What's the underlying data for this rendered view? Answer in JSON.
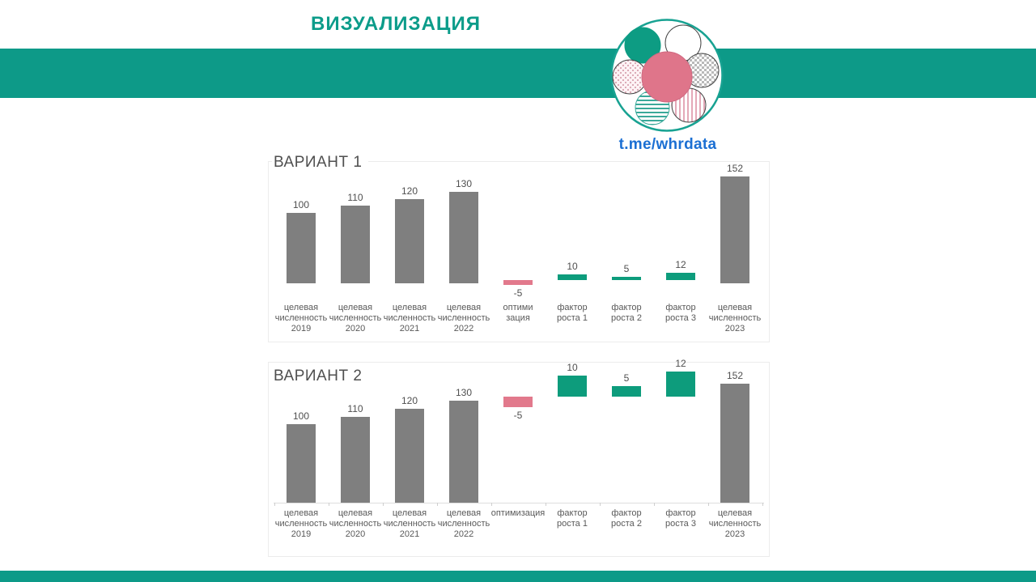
{
  "header": {
    "title": "ВИЗУАЛИЗАЦИЯ",
    "brand_color": "#0c9c8a",
    "band_color": "#0d9a88"
  },
  "logo": {
    "link": "t.me/whrdata",
    "link_color": "#1b6fd3",
    "ring_color": "#18a292",
    "petal_teal": "#0d9c83",
    "center_pink": "#df758a"
  },
  "palette": {
    "base": "#7f7f7f",
    "increase": "#0d9c7c",
    "decrease": "#e2798c",
    "text_gray": "#595959"
  },
  "chart_data": [
    {
      "type": "bar",
      "title": "ВАРИАНТ 1",
      "categories": [
        "целевая численность 2019",
        "целевая численность 2020",
        "целевая численность 2021",
        "целевая численность 2022",
        "оптимизация",
        "фактор роста 1",
        "фактор роста 2",
        "фактор роста 3",
        "целевая численность 2023"
      ],
      "values": [
        100,
        110,
        120,
        130,
        -5,
        10,
        5,
        12,
        152
      ],
      "value_labels": [
        "100",
        "110",
        "120",
        "130",
        "-5",
        "10",
        "5",
        "12",
        "152"
      ],
      "roles": [
        "base",
        "base",
        "base",
        "base",
        "decrease",
        "increase",
        "increase",
        "increase",
        "base"
      ],
      "label_lines": [
        [
          "целевая",
          "численность",
          "2019"
        ],
        [
          "целевая",
          "численность",
          "2020"
        ],
        [
          "целевая",
          "численность",
          "2021"
        ],
        [
          "целевая",
          "численность",
          "2022"
        ],
        [
          "оптими",
          "зация"
        ],
        [
          "фактор",
          "роста 1"
        ],
        [
          "фактор",
          "роста 2"
        ],
        [
          "фактор",
          "роста 3"
        ],
        [
          "целевая",
          "численность",
          "2023"
        ]
      ],
      "xlabel": "",
      "ylabel": "",
      "ylim": [
        0,
        160
      ],
      "grid": false,
      "axis_line": false
    },
    {
      "type": "waterfall",
      "title": "ВАРИАНТ 2",
      "categories": [
        "целевая численность 2019",
        "целевая численность 2020",
        "целевая численность 2021",
        "целевая численность 2022",
        "оптимизация",
        "фактор роста 1",
        "фактор роста 2",
        "фактор роста 3",
        "целевая численность 2023"
      ],
      "values": [
        100,
        110,
        120,
        130,
        -5,
        10,
        5,
        12,
        152
      ],
      "value_labels": [
        "100",
        "110",
        "120",
        "130",
        "-5",
        "10",
        "5",
        "12",
        "152"
      ],
      "roles": [
        "base",
        "base",
        "base",
        "base",
        "decrease",
        "increase",
        "increase",
        "increase",
        "base"
      ],
      "label_lines": [
        [
          "целевая",
          "численность",
          "2019"
        ],
        [
          "целевая",
          "численность",
          "2020"
        ],
        [
          "целевая",
          "численность",
          "2021"
        ],
        [
          "целевая",
          "численность",
          "2022"
        ],
        [
          "оптимизация"
        ],
        [
          "фактор",
          "роста 1"
        ],
        [
          "фактор",
          "роста 2"
        ],
        [
          "фактор",
          "роста 3"
        ],
        [
          "целевая",
          "численность",
          "2023"
        ]
      ],
      "xlabel": "",
      "ylabel": "",
      "ylim": [
        0,
        160
      ],
      "grid": false,
      "axis_line": true
    }
  ]
}
